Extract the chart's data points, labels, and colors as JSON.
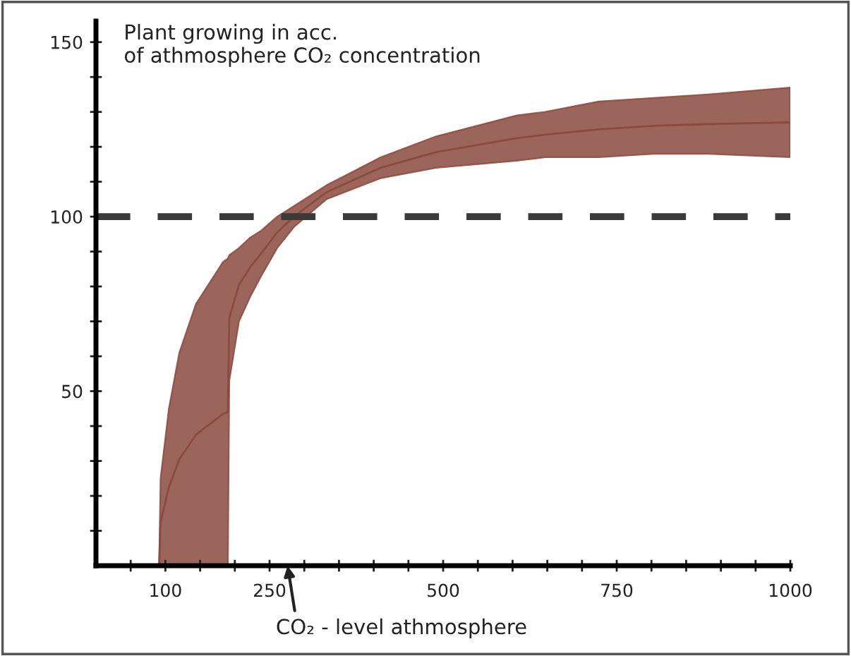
{
  "chart_data": {
    "type": "line",
    "title": "Plant growing in acc.\nof athmosphere CO₂ concentration",
    "x": [
      91,
      93,
      105,
      120,
      144,
      183,
      190,
      192,
      206,
      222,
      238,
      261,
      285,
      332,
      410,
      490,
      606,
      647,
      724,
      803,
      881,
      1000
    ],
    "series": [
      {
        "color": "#8b4a3e",
        "values": [
          0,
          12.5,
          22.5,
          30.5,
          37.5,
          43.5,
          44,
          71,
          80.5,
          85.5,
          89.5,
          95.5,
          100,
          107,
          114,
          118.5,
          122.5,
          123.5,
          125,
          126,
          126.5,
          127
        ],
        "upper": [
          0,
          25,
          45,
          61,
          75,
          87,
          88,
          89,
          91,
          94,
          96,
          100,
          103,
          109,
          117,
          123,
          129,
          130,
          133,
          134,
          135,
          137
        ],
        "lower": [
          0,
          0,
          0,
          0,
          0,
          0,
          0,
          53,
          70,
          77,
          83,
          91,
          97,
          105,
          111,
          114,
          116,
          117,
          117,
          118,
          118,
          117
        ]
      }
    ],
    "xlim": [
      0,
      1000
    ],
    "ylim": [
      0,
      156
    ],
    "xticks": [
      {
        "value": 50,
        "label": null
      },
      100,
      {
        "value": 150,
        "label": null
      },
      {
        "value": 200,
        "label": null
      },
      250,
      {
        "value": 300,
        "label": null
      },
      {
        "value": 350,
        "label": null
      },
      {
        "value": 400,
        "label": null
      },
      {
        "value": 450,
        "label": null
      },
      500,
      {
        "value": 550,
        "label": null
      },
      {
        "value": 600,
        "label": null
      },
      {
        "value": 650,
        "label": null
      },
      {
        "value": 700,
        "label": null
      },
      750,
      {
        "value": 800,
        "label": null
      },
      {
        "value": 850,
        "label": null
      },
      {
        "value": 900,
        "label": null
      },
      {
        "value": 950,
        "label": null
      },
      1000
    ],
    "yticks": [
      {
        "value": 10,
        "label": null
      },
      {
        "value": 20,
        "label": null
      },
      {
        "value": 30,
        "label": null
      },
      {
        "value": 40,
        "label": null
      },
      50,
      {
        "value": 60,
        "label": null
      },
      {
        "value": 70,
        "label": null
      },
      {
        "value": 80,
        "label": null
      },
      {
        "value": 90,
        "label": null
      },
      100,
      {
        "value": 110,
        "label": null
      },
      {
        "value": 120,
        "label": null
      },
      {
        "value": 130,
        "label": null
      },
      {
        "value": 140,
        "label": null
      },
      150
    ],
    "ref_lines": [
      {
        "axis": "y",
        "value": 100,
        "color": "#3a3a3a",
        "line_style": "dashed"
      }
    ],
    "xlabel": "CO₂ - level athmosphere",
    "grid": false,
    "legend": false
  }
}
